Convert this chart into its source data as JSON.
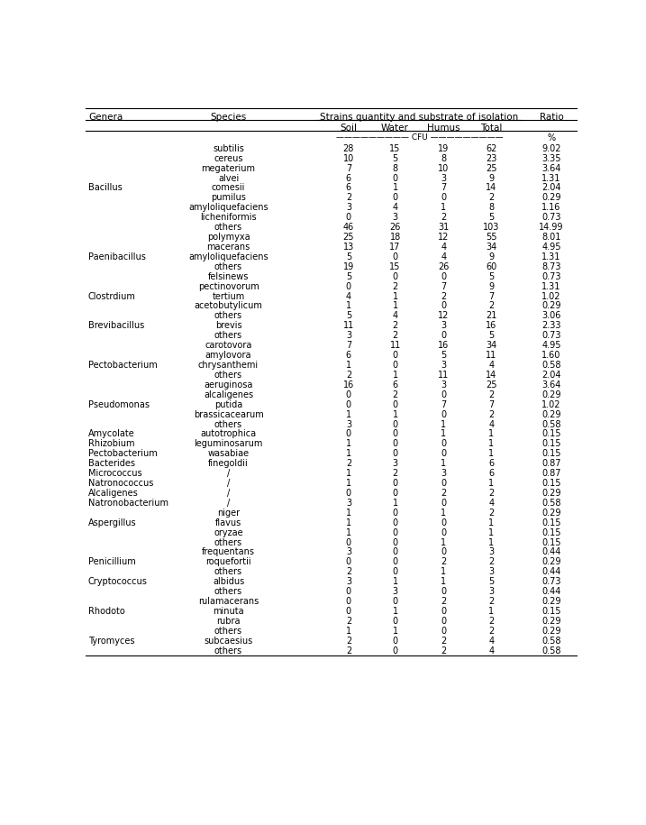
{
  "header1": "Genera",
  "header2": "Species",
  "header3": "Strains quantity and substrate of isolation",
  "header4": "Ratio",
  "subheaders": [
    "Soil",
    "Water",
    "Humus",
    "Total"
  ],
  "cfu_label": "CFU",
  "ratio_unit": "%",
  "rows": [
    {
      "genera": "",
      "species": "subtilis",
      "soil": 28,
      "water": 15,
      "humus": 19,
      "total": 62,
      "ratio": "9.02"
    },
    {
      "genera": "",
      "species": "cereus",
      "soil": 10,
      "water": 5,
      "humus": 8,
      "total": 23,
      "ratio": "3.35"
    },
    {
      "genera": "",
      "species": "megaterium",
      "soil": 7,
      "water": 8,
      "humus": 10,
      "total": 25,
      "ratio": "3.64"
    },
    {
      "genera": "",
      "species": "alvei",
      "soil": 6,
      "water": 0,
      "humus": 3,
      "total": 9,
      "ratio": "1.31"
    },
    {
      "genera": "Bacillus",
      "species": "comesii",
      "soil": 6,
      "water": 1,
      "humus": 7,
      "total": 14,
      "ratio": "2.04"
    },
    {
      "genera": "",
      "species": "pumilus",
      "soil": 2,
      "water": 0,
      "humus": 0,
      "total": 2,
      "ratio": "0.29"
    },
    {
      "genera": "",
      "species": "amyloliquefaciens",
      "soil": 3,
      "water": 4,
      "humus": 1,
      "total": 8,
      "ratio": "1.16"
    },
    {
      "genera": "",
      "species": "licheniformis",
      "soil": 0,
      "water": 3,
      "humus": 2,
      "total": 5,
      "ratio": "0.73"
    },
    {
      "genera": "",
      "species": "others",
      "soil": 46,
      "water": 26,
      "humus": 31,
      "total": 103,
      "ratio": "14.99"
    },
    {
      "genera": "",
      "species": "polymyxa",
      "soil": 25,
      "water": 18,
      "humus": 12,
      "total": 55,
      "ratio": "8.01"
    },
    {
      "genera": "",
      "species": "macerans",
      "soil": 13,
      "water": 17,
      "humus": 4,
      "total": 34,
      "ratio": "4.95"
    },
    {
      "genera": "Paenibacillus",
      "species": "amyloliquefaciens",
      "soil": 5,
      "water": 0,
      "humus": 4,
      "total": 9,
      "ratio": "1.31"
    },
    {
      "genera": "",
      "species": "others",
      "soil": 19,
      "water": 15,
      "humus": 26,
      "total": 60,
      "ratio": "8.73"
    },
    {
      "genera": "",
      "species": "felsinews",
      "soil": 5,
      "water": 0,
      "humus": 0,
      "total": 5,
      "ratio": "0.73"
    },
    {
      "genera": "",
      "species": "pectinovorum",
      "soil": 0,
      "water": 2,
      "humus": 7,
      "total": 9,
      "ratio": "1.31"
    },
    {
      "genera": "Clostrdium",
      "species": "tertium",
      "soil": 4,
      "water": 1,
      "humus": 2,
      "total": 7,
      "ratio": "1.02"
    },
    {
      "genera": "",
      "species": "acetobutylicum",
      "soil": 1,
      "water": 1,
      "humus": 0,
      "total": 2,
      "ratio": "0.29"
    },
    {
      "genera": "",
      "species": "others",
      "soil": 5,
      "water": 4,
      "humus": 12,
      "total": 21,
      "ratio": "3.06"
    },
    {
      "genera": "Brevibacillus",
      "species": "brevis",
      "soil": 11,
      "water": 2,
      "humus": 3,
      "total": 16,
      "ratio": "2.33"
    },
    {
      "genera": "",
      "species": "others",
      "soil": 3,
      "water": 2,
      "humus": 0,
      "total": 5,
      "ratio": "0.73"
    },
    {
      "genera": "",
      "species": "carotovora",
      "soil": 7,
      "water": 11,
      "humus": 16,
      "total": 34,
      "ratio": "4.95"
    },
    {
      "genera": "",
      "species": "amylovora",
      "soil": 6,
      "water": 0,
      "humus": 5,
      "total": 11,
      "ratio": "1.60"
    },
    {
      "genera": "Pectobacterium",
      "species": "chrysanthemi",
      "soil": 1,
      "water": 0,
      "humus": 3,
      "total": 4,
      "ratio": "0.58"
    },
    {
      "genera": "",
      "species": "others",
      "soil": 2,
      "water": 1,
      "humus": 11,
      "total": 14,
      "ratio": "2.04"
    },
    {
      "genera": "",
      "species": "aeruginosa",
      "soil": 16,
      "water": 6,
      "humus": 3,
      "total": 25,
      "ratio": "3.64"
    },
    {
      "genera": "",
      "species": "alcaligenes",
      "soil": 0,
      "water": 2,
      "humus": 0,
      "total": 2,
      "ratio": "0.29"
    },
    {
      "genera": "Pseudomonas",
      "species": "putida",
      "soil": 0,
      "water": 0,
      "humus": 7,
      "total": 7,
      "ratio": "1.02"
    },
    {
      "genera": "",
      "species": "brassicacearum",
      "soil": 1,
      "water": 1,
      "humus": 0,
      "total": 2,
      "ratio": "0.29"
    },
    {
      "genera": "",
      "species": "others",
      "soil": 3,
      "water": 0,
      "humus": 1,
      "total": 4,
      "ratio": "0.58"
    },
    {
      "genera": "Amycolate",
      "species": "autotrophica",
      "soil": 0,
      "water": 0,
      "humus": 1,
      "total": 1,
      "ratio": "0.15"
    },
    {
      "genera": "Rhizobium",
      "species": "leguminosarum",
      "soil": 1,
      "water": 0,
      "humus": 0,
      "total": 1,
      "ratio": "0.15"
    },
    {
      "genera": "Pectobacterium",
      "species": "wasabiae",
      "soil": 1,
      "water": 0,
      "humus": 0,
      "total": 1,
      "ratio": "0.15"
    },
    {
      "genera": "Bacterides",
      "species": "finegoldii",
      "soil": 2,
      "water": 3,
      "humus": 1,
      "total": 6,
      "ratio": "0.87"
    },
    {
      "genera": "Micrococcus",
      "species": "/",
      "soil": 1,
      "water": 2,
      "humus": 3,
      "total": 6,
      "ratio": "0.87"
    },
    {
      "genera": "Natronococcus",
      "species": "/",
      "soil": 1,
      "water": 0,
      "humus": 0,
      "total": 1,
      "ratio": "0.15"
    },
    {
      "genera": "Alcaligenes",
      "species": "/",
      "soil": 0,
      "water": 0,
      "humus": 2,
      "total": 2,
      "ratio": "0.29"
    },
    {
      "genera": "Natronobacterium",
      "species": "/",
      "soil": 3,
      "water": 1,
      "humus": 0,
      "total": 4,
      "ratio": "0.58"
    },
    {
      "genera": "",
      "species": "niger",
      "soil": 1,
      "water": 0,
      "humus": 1,
      "total": 2,
      "ratio": "0.29"
    },
    {
      "genera": "Aspergillus",
      "species": "flavus",
      "soil": 1,
      "water": 0,
      "humus": 0,
      "total": 1,
      "ratio": "0.15"
    },
    {
      "genera": "",
      "species": "oryzae",
      "soil": 1,
      "water": 0,
      "humus": 0,
      "total": 1,
      "ratio": "0.15"
    },
    {
      "genera": "",
      "species": "others",
      "soil": 0,
      "water": 0,
      "humus": 1,
      "total": 1,
      "ratio": "0.15"
    },
    {
      "genera": "",
      "species": "frequentans",
      "soil": 3,
      "water": 0,
      "humus": 0,
      "total": 3,
      "ratio": "0.44"
    },
    {
      "genera": "Penicillium",
      "species": "roquefortii",
      "soil": 0,
      "water": 0,
      "humus": 2,
      "total": 2,
      "ratio": "0.29"
    },
    {
      "genera": "",
      "species": "others",
      "soil": 2,
      "water": 0,
      "humus": 1,
      "total": 3,
      "ratio": "0.44"
    },
    {
      "genera": "Cryptococcus",
      "species": "albidus",
      "soil": 3,
      "water": 1,
      "humus": 1,
      "total": 5,
      "ratio": "0.73"
    },
    {
      "genera": "",
      "species": "others",
      "soil": 0,
      "water": 3,
      "humus": 0,
      "total": 3,
      "ratio": "0.44"
    },
    {
      "genera": "",
      "species": "rulamacerans",
      "soil": 0,
      "water": 0,
      "humus": 2,
      "total": 2,
      "ratio": "0.29"
    },
    {
      "genera": "Rhodoto",
      "species": "minuta",
      "soil": 0,
      "water": 1,
      "humus": 0,
      "total": 1,
      "ratio": "0.15"
    },
    {
      "genera": "",
      "species": "rubra",
      "soil": 2,
      "water": 0,
      "humus": 0,
      "total": 2,
      "ratio": "0.29"
    },
    {
      "genera": "",
      "species": "others",
      "soil": 1,
      "water": 1,
      "humus": 0,
      "total": 2,
      "ratio": "0.29"
    },
    {
      "genera": "Tyromyces",
      "species": "subcaesius",
      "soil": 2,
      "water": 0,
      "humus": 2,
      "total": 4,
      "ratio": "0.58"
    },
    {
      "genera": "",
      "species": "others",
      "soil": 2,
      "water": 0,
      "humus": 2,
      "total": 4,
      "ratio": "0.58"
    }
  ],
  "bg_color": "#ffffff",
  "text_color": "#000000",
  "line_color": "#000000",
  "font_size": 7.0,
  "header_font_size": 7.5
}
